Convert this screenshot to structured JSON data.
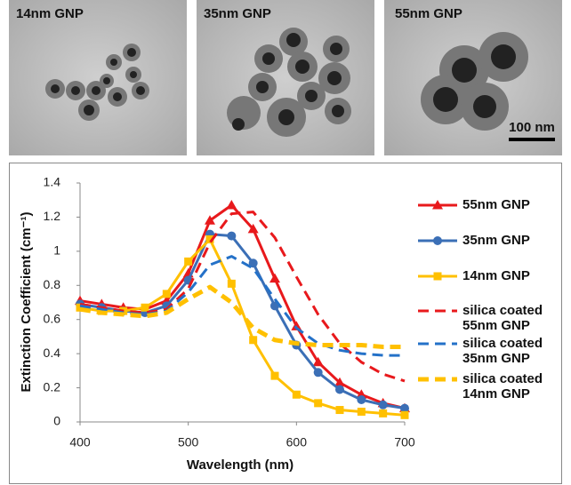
{
  "images": [
    {
      "label": "14nm GNP"
    },
    {
      "label": "35nm GNP"
    },
    {
      "label": "55nm GNP"
    }
  ],
  "scale_bar": "100 nm",
  "chart_data": {
    "type": "line",
    "x_label": "Wavelength (nm)",
    "y_label": "Extinction Coefficient (cm⁻¹)",
    "x": [
      400,
      420,
      440,
      460,
      480,
      500,
      520,
      540,
      560,
      580,
      600,
      620,
      640,
      660,
      680,
      700
    ],
    "series": [
      {
        "name": "55nm GNP",
        "color": "#e8191c",
        "marker": "triangle",
        "dash": false,
        "values": [
          0.71,
          0.69,
          0.67,
          0.66,
          0.71,
          0.87,
          1.18,
          1.27,
          1.13,
          0.84,
          0.56,
          0.35,
          0.23,
          0.16,
          0.11,
          0.08
        ]
      },
      {
        "name": "35nm GNP",
        "color": "#3b6fb6",
        "marker": "circle",
        "dash": false,
        "values": [
          0.69,
          0.67,
          0.65,
          0.64,
          0.68,
          0.83,
          1.1,
          1.09,
          0.93,
          0.68,
          0.45,
          0.29,
          0.19,
          0.13,
          0.1,
          0.08
        ]
      },
      {
        "name": "14nm GNP",
        "color": "#ffc000",
        "marker": "square",
        "dash": false,
        "values": [
          0.67,
          0.65,
          0.65,
          0.67,
          0.75,
          0.94,
          1.07,
          0.81,
          0.48,
          0.27,
          0.16,
          0.11,
          0.07,
          0.06,
          0.05,
          0.04
        ]
      },
      {
        "name": "silica coated\n55nm GNP",
        "color": "#e8191c",
        "marker": "none",
        "dash": true,
        "values": [
          0.69,
          0.67,
          0.65,
          0.64,
          0.66,
          0.78,
          1.05,
          1.22,
          1.23,
          1.08,
          0.85,
          0.63,
          0.46,
          0.35,
          0.28,
          0.24
        ]
      },
      {
        "name": "silica coated\n35nm GNP",
        "color": "#2471c8",
        "marker": "none",
        "dash": true,
        "values": [
          0.68,
          0.66,
          0.64,
          0.63,
          0.65,
          0.76,
          0.92,
          0.97,
          0.9,
          0.72,
          0.55,
          0.46,
          0.42,
          0.4,
          0.39,
          0.39
        ]
      },
      {
        "name": "silica coated\n14nm GNP",
        "color": "#ffc000",
        "marker": "none",
        "dash": true,
        "values": [
          0.66,
          0.64,
          0.63,
          0.62,
          0.64,
          0.72,
          0.79,
          0.7,
          0.55,
          0.48,
          0.46,
          0.45,
          0.45,
          0.45,
          0.44,
          0.44
        ]
      }
    ],
    "xlim": [
      400,
      700
    ],
    "xticks": [
      400,
      500,
      600,
      700
    ],
    "ylim": [
      0,
      1.4
    ],
    "yticks": [
      0,
      0.2,
      0.4,
      0.6,
      0.8,
      1,
      1.2,
      1.4
    ],
    "grid": false
  }
}
